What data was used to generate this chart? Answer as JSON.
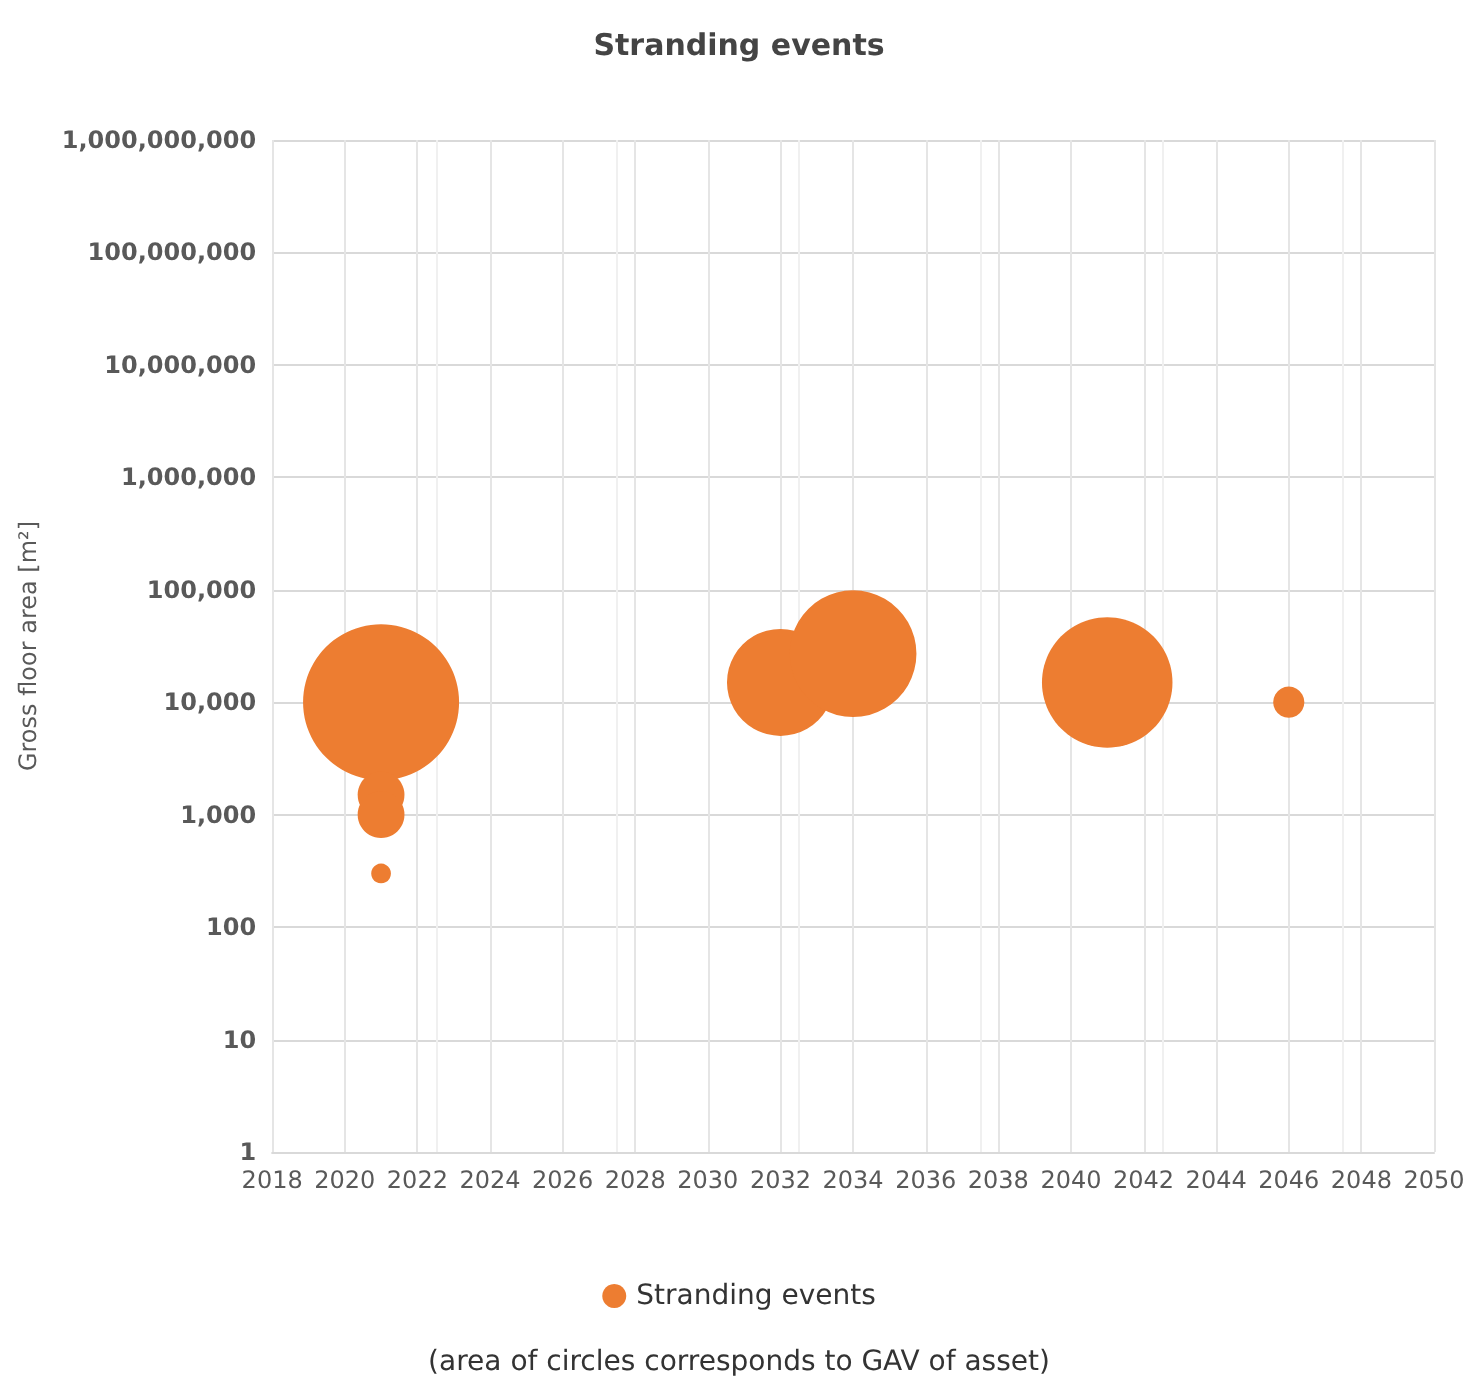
{
  "chart_data": {
    "type": "bubble",
    "title": "Stranding events",
    "ylabel": "Gross floor area [m²]",
    "x": [
      2021,
      2021,
      2021,
      2021,
      2032,
      2034,
      2041,
      2046
    ],
    "series": [
      {
        "name": "Stranding events",
        "color": "#ed7d31",
        "values": [
          10000,
          1500,
          1000,
          300,
          15000,
          27000,
          15000,
          10000
        ],
        "sizes": [
          1,
          0.09,
          0.09,
          0.016,
          0.47,
          0.66,
          0.7,
          0.04
        ]
      }
    ],
    "xlim": [
      2018,
      2050
    ],
    "xticks": [
      2018,
      2020,
      2022,
      2024,
      2026,
      2028,
      2030,
      2032,
      2034,
      2036,
      2038,
      2040,
      2042,
      2044,
      2046,
      2048,
      2050
    ],
    "ylim": [
      1,
      1000000000
    ],
    "yticks": [
      1,
      10,
      100,
      {
        "value": 1000,
        "label": "1,000"
      },
      {
        "value": 10000,
        "label": "10,000"
      },
      {
        "value": 100000,
        "label": "100,000"
      },
      {
        "value": 1000000,
        "label": "1,000,000"
      },
      {
        "value": 10000000,
        "label": "10,000,000"
      },
      {
        "value": 100000000,
        "label": "100,000,000"
      },
      {
        "value": 1000000000,
        "label": "1,000,000,000"
      }
    ],
    "log": "y",
    "grid": true,
    "legend": "bottom",
    "marker": "circle",
    "annotations": [
      "(area of circles corresponds to GAV of asset)"
    ]
  }
}
